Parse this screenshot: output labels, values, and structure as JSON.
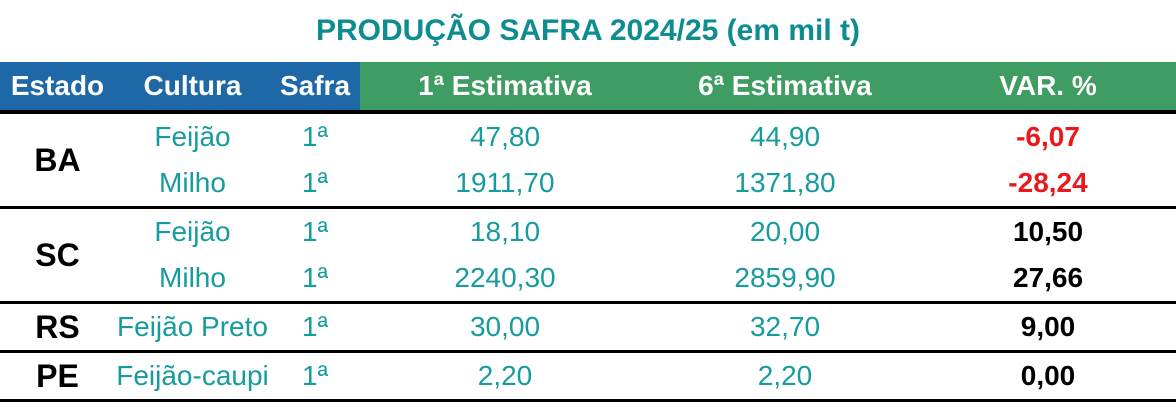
{
  "title": "PRODUÇÃO SAFRA 2024/25 (em mil t)",
  "colors": {
    "title_teal": "#0E8D91",
    "data_teal": "#169B9E",
    "header_blue": "#1E68A8",
    "header_green": "#3F9D64",
    "negative_red": "#E8191C",
    "text_black": "#000000"
  },
  "table": {
    "headers": [
      "Estado",
      "Cultura",
      "Safra",
      "1ª Estimativa",
      "6ª Estimativa",
      "VAR. %"
    ],
    "groups": [
      {
        "estado": "BA",
        "rows": [
          {
            "cultura": "Feijão",
            "safra": "1ª",
            "est1": "47,80",
            "est6": "44,90",
            "var": "-6,07"
          },
          {
            "cultura": "Milho",
            "safra": "1ª",
            "est1": "1911,70",
            "est6": "1371,80",
            "var": "-28,24"
          }
        ]
      },
      {
        "estado": "SC",
        "rows": [
          {
            "cultura": "Feijão",
            "safra": "1ª",
            "est1": "18,10",
            "est6": "20,00",
            "var": "10,50"
          },
          {
            "cultura": "Milho",
            "safra": "1ª",
            "est1": "2240,30",
            "est6": "2859,90",
            "var": "27,66"
          }
        ]
      },
      {
        "estado": "RS",
        "rows": [
          {
            "cultura": "Feijão Preto",
            "safra": "1ª",
            "est1": "30,00",
            "est6": "32,70",
            "var": "9,00"
          }
        ]
      },
      {
        "estado": "PE",
        "rows": [
          {
            "cultura": "Feijão-caupi",
            "safra": "1ª",
            "est1": "2,20",
            "est6": "2,20",
            "var": "0,00"
          }
        ]
      }
    ]
  },
  "chart_data": {
    "type": "table",
    "title": "PRODUÇÃO SAFRA 2024/25 (em mil t)",
    "columns": [
      "Estado",
      "Cultura",
      "Safra",
      "1ª Estimativa",
      "6ª Estimativa",
      "VAR. %"
    ],
    "rows": [
      [
        "BA",
        "Feijão",
        "1ª",
        47.8,
        44.9,
        -6.07
      ],
      [
        "BA",
        "Milho",
        "1ª",
        1911.7,
        1371.8,
        -28.24
      ],
      [
        "SC",
        "Feijão",
        "1ª",
        18.1,
        20.0,
        10.5
      ],
      [
        "SC",
        "Milho",
        "1ª",
        2240.3,
        2859.9,
        27.66
      ],
      [
        "RS",
        "Feijão Preto",
        "1ª",
        30.0,
        32.7,
        9.0
      ],
      [
        "PE",
        "Feijão-caupi",
        "1ª",
        2.2,
        2.2,
        0.0
      ]
    ],
    "units": "mil t (thousand tonnes)",
    "notes": "Negative VAR. % values rendered in red bold; positive/zero in black bold; estimates in teal"
  }
}
